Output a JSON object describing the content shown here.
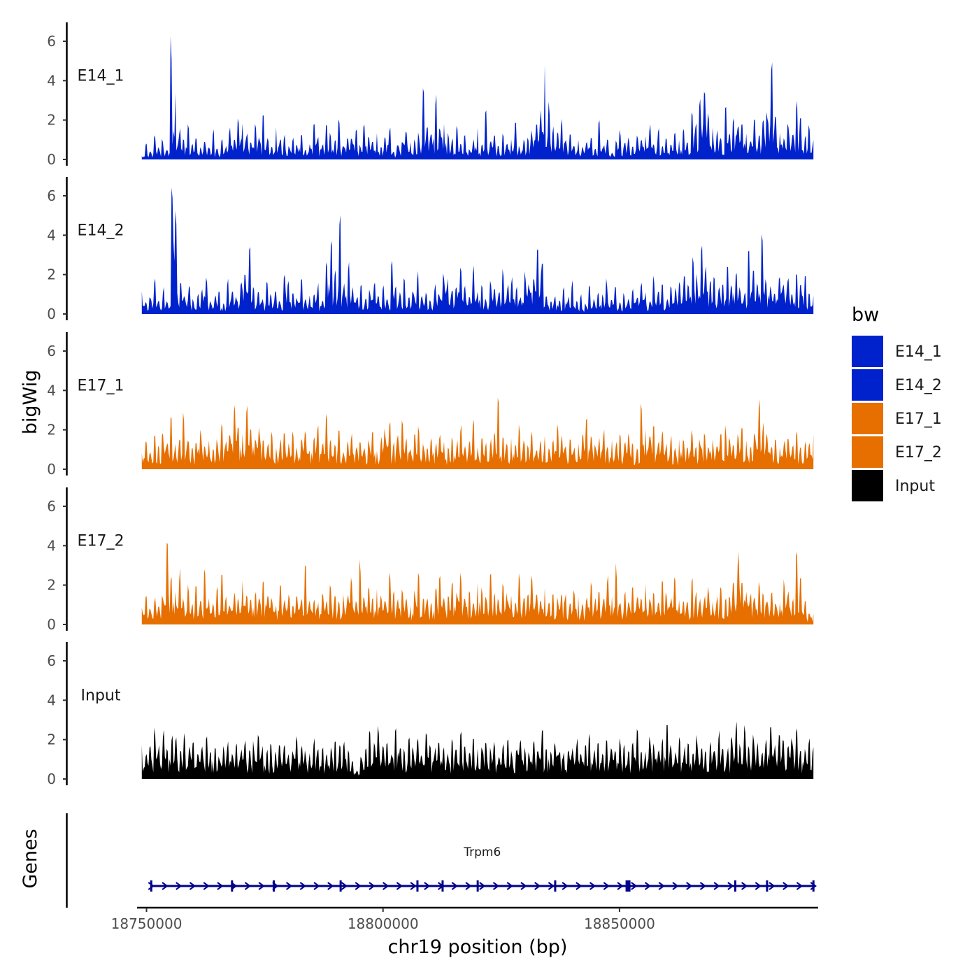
{
  "chart_data": {
    "type": "area",
    "title": "",
    "xlabel": "chr19 position (bp)",
    "ylabel": "bigWig",
    "genes_label": "Genes",
    "xlim": [
      18748000,
      18892000
    ],
    "x_ticks": [
      18750000,
      18800000,
      18850000
    ],
    "x_tick_labels": [
      "18750000",
      "18800000",
      "18850000"
    ],
    "ylim": [
      0,
      7
    ],
    "y_ticks": [
      0,
      2,
      4,
      6
    ],
    "y_tick_labels": [
      "0",
      "2",
      "4",
      "6"
    ],
    "grid": false,
    "legend": {
      "title": "bw",
      "placement": "right",
      "entries": [
        {
          "name": "E14_1",
          "color": "#0022CC"
        },
        {
          "name": "E14_2",
          "color": "#0022CC"
        },
        {
          "name": "E17_1",
          "color": "#E66F00"
        },
        {
          "name": "E17_2",
          "color": "#E66F00"
        },
        {
          "name": "Input",
          "color": "#000000"
        }
      ]
    },
    "series": [
      {
        "name": "E14_1",
        "color": "#0022CC",
        "values": [
          0.2,
          0.8,
          0.4,
          1.2,
          0.6,
          1.0,
          0.5,
          5.6,
          3.0,
          1.5,
          0.9,
          1.8,
          0.7,
          1.2,
          0.6,
          0.9,
          0.7,
          1.4,
          0.5,
          1.0,
          0.6,
          1.5,
          0.9,
          2.1,
          1.6,
          1.2,
          0.8,
          1.8,
          1.0,
          2.3,
          1.0,
          0.7,
          1.6,
          0.9,
          1.2,
          0.6,
          1.0,
          0.8,
          1.1,
          0.5,
          0.9,
          1.6,
          1.0,
          0.7,
          1.9,
          1.3,
          1.0,
          1.8,
          0.8,
          1.2,
          1.0,
          1.5,
          0.7,
          1.9,
          1.1,
          0.8,
          1.4,
          0.6,
          1.0,
          1.6,
          0.4,
          0.8,
          1.0,
          1.3,
          1.0,
          0.9,
          1.2,
          3.2,
          1.6,
          1.4,
          2.9,
          1.5,
          1.8,
          1.2,
          1.0,
          1.6,
          0.8,
          1.1,
          0.5,
          0.9,
          1.4,
          0.7,
          2.4,
          0.9,
          1.1,
          0.6,
          1.3,
          0.8,
          1.0,
          1.8,
          0.6,
          0.9,
          1.0,
          1.3,
          1.8,
          2.2,
          4.6,
          2.7,
          1.5,
          1.2,
          2.0,
          1.0,
          1.4,
          0.7,
          1.1,
          0.6,
          0.8,
          1.2,
          0.5,
          1.9,
          0.7,
          1.0,
          0.4,
          0.9,
          1.4,
          0.8,
          1.0,
          0.7,
          1.2,
          0.9,
          1.1,
          1.6,
          0.8,
          1.4,
          0.6,
          1.0,
          0.7,
          1.2,
          0.9,
          1.5,
          0.8,
          2.3,
          1.6,
          2.9,
          3.7,
          2.4,
          1.8,
          1.4,
          1.1,
          2.5,
          1.2,
          2.1,
          1.7,
          1.9,
          1.3,
          1.0,
          2.2,
          1.1,
          1.8,
          2.4,
          5.1,
          2.0,
          1.3,
          1.0,
          1.8,
          1.4,
          2.9,
          1.9,
          1.1,
          1.6,
          1.0
        ]
      },
      {
        "name": "E14_2",
        "color": "#0022CC",
        "values": [
          1.3,
          0.6,
          0.9,
          1.8,
          0.7,
          1.2,
          0.6,
          6.6,
          4.8,
          1.6,
          0.9,
          1.5,
          0.7,
          1.0,
          1.2,
          1.7,
          0.6,
          0.9,
          1.3,
          0.5,
          1.6,
          1.0,
          0.8,
          1.6,
          1.8,
          3.4,
          1.2,
          1.0,
          0.7,
          1.5,
          0.9,
          1.2,
          0.6,
          2.1,
          1.5,
          1.0,
          0.8,
          1.6,
          0.7,
          1.1,
          0.9,
          1.4,
          0.6,
          2.6,
          3.8,
          2.0,
          5.0,
          1.4,
          2.3,
          1.2,
          0.9,
          1.6,
          0.8,
          1.1,
          1.7,
          0.9,
          1.3,
          0.7,
          2.6,
          1.5,
          1.0,
          1.6,
          0.8,
          1.2,
          1.9,
          0.9,
          1.1,
          0.7,
          1.4,
          1.0,
          2.1,
          1.6,
          1.2,
          1.4,
          2.1,
          1.3,
          0.9,
          2.2,
          1.0,
          1.3,
          0.7,
          1.6,
          1.2,
          1.0,
          2.0,
          1.5,
          1.7,
          1.3,
          0.8,
          2.0,
          1.4,
          1.6,
          2.9,
          2.6,
          1.0,
          0.7,
          0.9,
          0.6,
          1.2,
          0.8,
          1.5,
          0.6,
          0.9,
          0.5,
          1.3,
          0.7,
          1.0,
          0.9,
          1.6,
          0.8,
          1.4,
          0.6,
          1.0,
          0.7,
          1.2,
          0.9,
          1.5,
          1.1,
          0.6,
          1.8,
          1.0,
          1.3,
          0.7,
          1.4,
          1.2,
          1.6,
          2.1,
          1.5,
          2.6,
          1.8,
          3.4,
          2.2,
          1.6,
          2.0,
          1.2,
          1.7,
          2.3,
          1.4,
          1.9,
          1.2,
          1.0,
          3.3,
          2.2,
          1.6,
          3.9,
          1.8,
          1.3,
          1.0,
          2.0,
          1.5,
          1.9,
          1.1,
          2.2,
          1.4,
          1.8,
          1.0,
          0.8
        ]
      },
      {
        "name": "E17_1",
        "color": "#E66F00",
        "values": [
          0.9,
          1.3,
          0.8,
          1.6,
          1.1,
          2.0,
          1.4,
          2.5,
          1.2,
          1.7,
          2.6,
          1.5,
          1.0,
          1.4,
          1.9,
          1.2,
          1.6,
          1.0,
          1.5,
          2.0,
          1.3,
          1.8,
          3.1,
          2.2,
          1.6,
          3.3,
          2.2,
          1.5,
          2.0,
          1.6,
          1.2,
          1.8,
          1.0,
          1.4,
          2.1,
          1.2,
          1.7,
          1.0,
          1.4,
          1.9,
          1.1,
          1.5,
          2.0,
          1.3,
          2.6,
          1.6,
          1.2,
          1.8,
          1.0,
          1.4,
          1.7,
          1.1,
          1.5,
          1.0,
          1.3,
          1.8,
          1.1,
          1.6,
          1.9,
          2.3,
          1.3,
          1.7,
          2.6,
          1.4,
          1.1,
          1.6,
          1.9,
          1.2,
          1.0,
          1.5,
          1.2,
          1.8,
          1.4,
          1.0,
          1.6,
          1.3,
          2.0,
          1.1,
          1.5,
          2.3,
          1.0,
          1.6,
          1.2,
          1.4,
          1.8,
          3.3,
          1.6,
          1.2,
          1.5,
          1.1,
          2.0,
          1.4,
          1.2,
          1.7,
          1.0,
          1.3,
          1.5,
          1.1,
          1.4,
          2.0,
          1.6,
          1.2,
          1.5,
          1.0,
          1.3,
          1.8,
          2.5,
          1.6,
          1.2,
          1.4,
          1.8,
          1.1,
          1.6,
          1.3,
          1.9,
          1.2,
          1.7,
          1.4,
          1.0,
          3.0,
          2.2,
          1.6,
          2.4,
          1.3,
          1.7,
          1.2,
          1.5,
          1.0,
          1.6,
          1.3,
          1.2,
          1.8,
          1.0,
          1.4,
          1.7,
          1.2,
          1.5,
          1.3,
          1.8,
          2.0,
          1.5,
          1.2,
          1.6,
          1.9,
          1.4,
          1.1,
          1.7,
          3.4,
          2.3,
          1.8,
          1.2,
          1.6,
          1.0,
          1.3,
          1.5,
          1.2,
          1.8,
          1.1,
          1.4,
          1.2,
          1.8
        ]
      },
      {
        "name": "E17_2",
        "color": "#E66F00",
        "values": [
          0.9,
          1.6,
          0.8,
          1.2,
          0.9,
          1.4,
          4.2,
          2.2,
          1.6,
          2.6,
          1.2,
          1.8,
          1.0,
          2.0,
          1.3,
          2.5,
          1.4,
          1.0,
          1.8,
          2.7,
          1.3,
          1.0,
          1.6,
          1.2,
          2.0,
          1.5,
          1.1,
          1.7,
          1.3,
          2.1,
          1.6,
          1.2,
          1.0,
          1.8,
          1.2,
          1.4,
          1.0,
          1.6,
          1.2,
          2.8,
          1.4,
          1.2,
          1.0,
          1.5,
          1.2,
          1.9,
          1.3,
          1.1,
          1.7,
          1.4,
          2.2,
          1.2,
          2.9,
          1.5,
          1.7,
          1.3,
          1.9,
          1.4,
          1.1,
          2.6,
          1.5,
          1.2,
          1.8,
          1.3,
          1.0,
          1.6,
          2.3,
          1.2,
          1.4,
          1.0,
          1.7,
          2.2,
          1.6,
          1.3,
          1.9,
          1.5,
          2.4,
          1.2,
          1.6,
          1.0,
          1.9,
          1.7,
          1.3,
          2.6,
          1.6,
          1.2,
          1.8,
          1.4,
          1.6,
          1.1,
          2.3,
          1.3,
          1.5,
          2.2,
          1.4,
          1.1,
          1.8,
          1.2,
          1.5,
          1.2,
          1.6,
          1.4,
          1.0,
          1.7,
          1.3,
          0.9,
          1.4,
          1.9,
          1.2,
          1.6,
          1.3,
          2.4,
          1.5,
          2.8,
          1.2,
          1.6,
          1.1,
          1.9,
          1.4,
          1.3,
          2.4,
          1.2,
          1.6,
          1.0,
          1.9,
          1.5,
          1.3,
          2.1,
          1.4,
          1.2,
          1.0,
          2.2,
          1.5,
          1.2,
          1.4,
          1.8,
          1.1,
          1.3,
          1.7,
          1.2,
          1.5,
          1.9,
          3.3,
          2.4,
          1.8,
          1.4,
          1.2,
          1.9,
          1.5,
          1.3,
          1.6,
          1.2,
          1.1,
          2.0,
          1.6,
          1.2,
          3.7,
          2.5,
          1.2,
          0.6,
          0.5
        ]
      },
      {
        "name": "Input",
        "color": "#000000",
        "values": [
          1.8,
          1.2,
          1.5,
          2.4,
          1.6,
          2.2,
          1.4,
          2.3,
          1.9,
          1.4,
          2.1,
          1.5,
          1.8,
          1.2,
          1.6,
          2.0,
          1.3,
          1.7,
          1.1,
          1.5,
          1.8,
          1.2,
          1.6,
          1.4,
          1.9,
          1.3,
          1.7,
          2.1,
          1.5,
          1.3,
          1.9,
          1.4,
          1.6,
          1.8,
          1.2,
          1.4,
          2.2,
          1.6,
          1.3,
          1.5,
          2.0,
          1.4,
          1.7,
          1.2,
          1.6,
          2.1,
          1.5,
          1.8,
          1.3,
          0.8,
          0.4,
          1.2,
          1.6,
          2.6,
          1.8,
          2.4,
          1.5,
          1.9,
          1.3,
          2.8,
          1.7,
          1.4,
          2.0,
          1.5,
          1.8,
          1.3,
          2.2,
          1.6,
          1.4,
          1.9,
          1.6,
          1.2,
          1.8,
          1.5,
          2.4,
          1.6,
          1.3,
          1.9,
          1.4,
          1.7,
          2.0,
          1.5,
          1.7,
          1.2,
          1.6,
          1.9,
          1.3,
          1.6,
          1.8,
          1.4,
          1.2,
          2.0,
          1.5,
          2.4,
          1.6,
          1.3,
          1.8,
          1.5,
          1.2,
          1.6,
          1.4,
          1.9,
          1.3,
          1.7,
          2.2,
          1.4,
          1.6,
          1.2,
          1.8,
          1.5,
          1.3,
          1.9,
          1.6,
          1.4,
          1.7,
          2.3,
          1.5,
          1.3,
          1.9,
          1.6,
          1.4,
          1.8,
          2.4,
          1.6,
          1.3,
          1.9,
          1.5,
          1.7,
          1.4,
          2.0,
          1.6,
          1.3,
          1.8,
          1.5,
          2.2,
          1.7,
          1.4,
          1.9,
          2.9,
          1.8,
          2.7,
          1.5,
          2.1,
          1.7,
          1.4,
          2.0,
          2.6,
          1.6,
          2.4,
          1.8,
          1.5,
          1.9,
          2.3,
          1.6,
          1.4,
          2.1,
          1.7
        ]
      }
    ],
    "annotations": [
      {
        "type": "gene",
        "name": "Trpm6",
        "start": 18751000,
        "end": 18891000,
        "strand": "+"
      }
    ]
  }
}
